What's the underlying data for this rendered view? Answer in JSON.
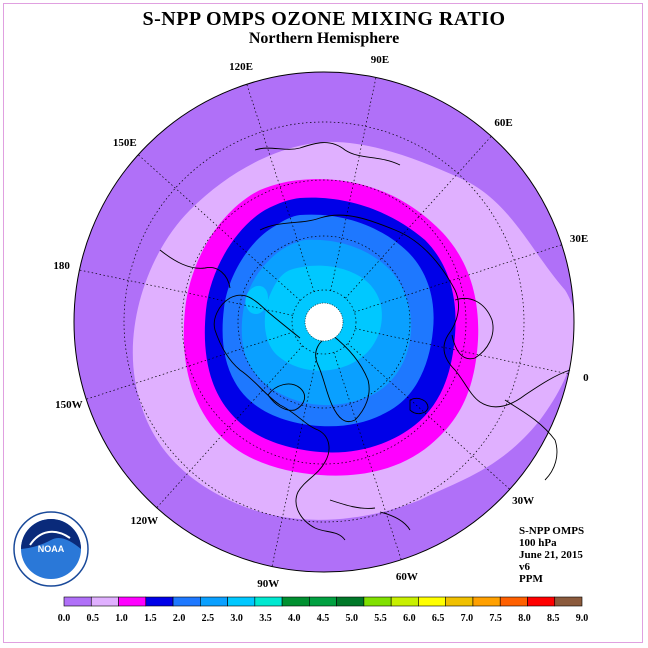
{
  "title": "S-NPP OMPS OZONE MIXING RATIO",
  "subtitle": "Northern Hemisphere",
  "longitude_labels": [
    {
      "text": "90E",
      "lon": 90
    },
    {
      "text": "60E",
      "lon": 60
    },
    {
      "text": "30E",
      "lon": 30
    },
    {
      "text": "0",
      "lon": 0
    },
    {
      "text": "30W",
      "lon": -30
    },
    {
      "text": "60W",
      "lon": -60
    },
    {
      "text": "90W",
      "lon": -90
    },
    {
      "text": "120W",
      "lon": -120
    },
    {
      "text": "150W",
      "lon": -150
    },
    {
      "text": "180",
      "lon": 180
    },
    {
      "text": "150E",
      "lon": 150
    },
    {
      "text": "120E",
      "lon": 120
    }
  ],
  "info": {
    "instrument": "S-NPP OMPS",
    "level": "100 hPa",
    "date": "June 21, 2015",
    "version": "v6",
    "units": "PPM"
  },
  "colorbar": {
    "ticks": [
      "0.0",
      "0.5",
      "1.0",
      "1.5",
      "2.0",
      "2.5",
      "3.0",
      "3.5",
      "4.0",
      "4.5",
      "5.0",
      "5.5",
      "6.0",
      "6.5",
      "7.0",
      "7.5",
      "8.0",
      "8.5",
      "9.0"
    ],
    "colors": [
      "#b070f8",
      "#e0b0ff",
      "#ff00ff",
      "#0000e8",
      "#1e78ff",
      "#0aa0ff",
      "#00c8ff",
      "#00e8d0",
      "#009030",
      "#00a040",
      "#007828",
      "#80e000",
      "#c8f000",
      "#ffff00",
      "#f0c000",
      "#ffa000",
      "#ff6000",
      "#ff0000",
      "#8b5a3c"
    ]
  },
  "logo_text": "NOAA"
}
